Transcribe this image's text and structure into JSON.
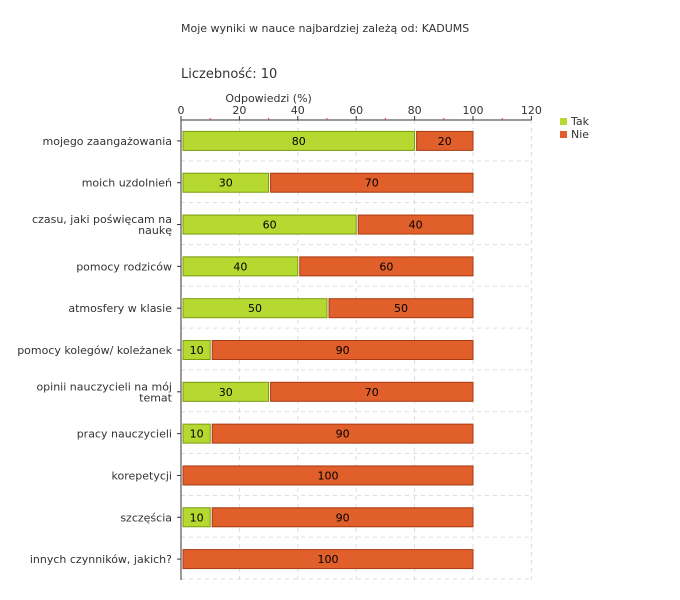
{
  "header": {
    "title": "Moje wyniki w nauce najbardziej zależą od: KADUMS",
    "count_label": "Liczebność:",
    "count_value": "10"
  },
  "chart_data": {
    "type": "bar",
    "orientation": "horizontal",
    "stacked": true,
    "title": "Moje wyniki w nauce najbardziej zależą od: KADUMS",
    "xlabel": "Odpowiedzi (%)",
    "ylabel": "",
    "xlim": [
      0,
      120
    ],
    "xticks": [
      0,
      20,
      40,
      60,
      80,
      100,
      120
    ],
    "grid": true,
    "legend_position": "top-right",
    "categories": [
      "mojego zaangażowania",
      "moich uzdolnień",
      "czasu, jaki poświęcam na naukę",
      "pomocy rodziców",
      "atmosfery w klasie",
      "pomocy kolegów/ koleżanek",
      "opinii nauczycieli na mój temat",
      "pracy nauczycieli",
      "korepetycji",
      "szczęścia",
      "innych czynników, jakich?"
    ],
    "series": [
      {
        "name": "Tak",
        "color": "#b5d930",
        "values": [
          80,
          30,
          60,
          40,
          50,
          10,
          30,
          10,
          0,
          10,
          0
        ]
      },
      {
        "name": "Nie",
        "color": "#e05f2a",
        "values": [
          20,
          70,
          40,
          60,
          50,
          90,
          70,
          90,
          100,
          90,
          100
        ]
      }
    ]
  }
}
